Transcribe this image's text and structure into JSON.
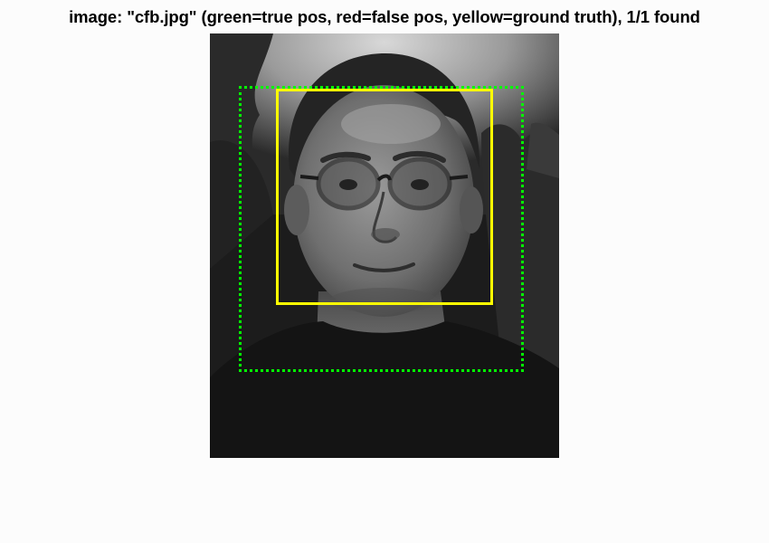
{
  "figure": {
    "title": "image: \"cfb.jpg\" (green=true pos, red=false pos, yellow=ground truth), 1/1 found"
  },
  "legend": {
    "true_positive_color": "#00ff00",
    "false_positive_color": "#ff0000",
    "ground_truth_color": "#ffff00"
  },
  "detections": {
    "found": 1,
    "total": 1
  }
}
